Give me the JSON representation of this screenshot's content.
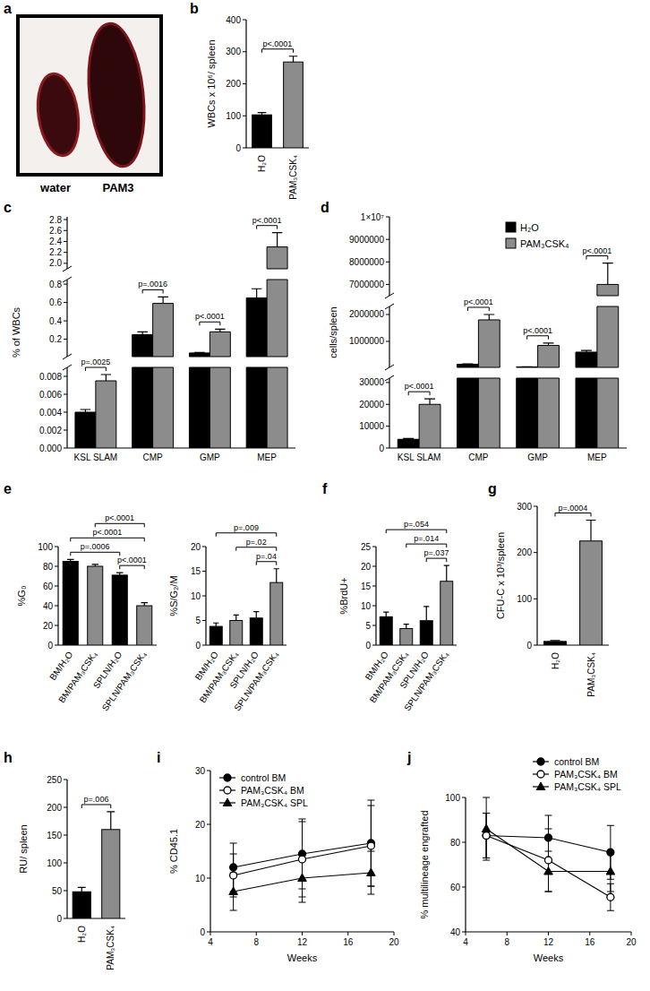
{
  "chart_data": [
    {
      "type": "image",
      "panel": "a",
      "labels": [
        "water",
        "PAM3"
      ]
    },
    {
      "type": "bar",
      "panel": "b",
      "y_label": "WBCs x 10⁶/ spleen",
      "categories": [
        "H₂O",
        "PAM₃CSK₄"
      ],
      "values": [
        103,
        268
      ],
      "errors": [
        7,
        18
      ],
      "colors": [
        "#000000",
        "#8c8c8c"
      ],
      "ylim": [
        0,
        400
      ],
      "yticks": [
        0,
        100,
        200,
        300,
        400
      ],
      "comparisons": [
        {
          "from": 0,
          "to": 1,
          "label": "p<.0001"
        }
      ]
    },
    {
      "type": "bar",
      "panel": "c",
      "y_label": "% of WBCs",
      "categories": [
        "KSL SLAM",
        "CMP",
        "GMP",
        "MEP"
      ],
      "series": [
        {
          "color": "#000000",
          "values": [
            0.004,
            0.25,
            0.05,
            0.65
          ],
          "errors": [
            0.0003,
            0.03,
            0.006,
            0.1
          ]
        },
        {
          "color": "#8c8c8c",
          "values": [
            0.0075,
            0.59,
            0.28,
            2.3
          ],
          "errors": [
            0.0007,
            0.07,
            0.03,
            0.26
          ]
        }
      ],
      "y_segments": [
        {
          "ylim": [
            0,
            0.009
          ],
          "yticks": [
            {
              "value": 0,
              "label": "0.000"
            },
            0.002,
            0.004,
            0.006,
            0.008
          ]
        },
        {
          "ylim": [
            0.01,
            0.85
          ],
          "yticks": [
            0.2,
            0.4,
            0.6,
            0.8
          ]
        },
        {
          "ylim": [
            1.9,
            2.85
          ],
          "yticks": [
            {
              "value": 2,
              "label": "2.0"
            },
            2.2,
            2.4,
            2.6,
            2.8
          ]
        }
      ],
      "comparisons": [
        {
          "category": 0,
          "label": "p=.0025"
        },
        {
          "category": 1,
          "label": "p=.0016"
        },
        {
          "category": 2,
          "label": "p<.0001"
        },
        {
          "category": 3,
          "label": "p<.0001"
        }
      ]
    },
    {
      "type": "bar",
      "panel": "d",
      "y_label": "cells/spleen",
      "categories": [
        "KSL SLAM",
        "CMP",
        "GMP",
        "MEP"
      ],
      "legend": "top-right",
      "series": [
        {
          "name": "H₂O",
          "color": "#000000",
          "values": [
            4000,
            150000,
            50000,
            600000
          ],
          "errors": [
            400,
            15000,
            5000,
            60000
          ]
        },
        {
          "name": "PAM₃CSK₄",
          "color": "#8c8c8c",
          "values": [
            20000,
            1800000,
            850000,
            7000000
          ],
          "errors": [
            2500,
            200000,
            90000,
            950000
          ]
        }
      ],
      "y_segments": [
        {
          "ylim": [
            0,
            32000
          ],
          "yticks": [
            0,
            10000,
            20000,
            30000
          ]
        },
        {
          "ylim": [
            32000,
            2300000
          ],
          "yticks": [
            1000000,
            2000000
          ]
        },
        {
          "ylim": [
            6500000,
            10000000
          ],
          "yticks": [
            7000000,
            8000000,
            9000000,
            {
              "value": 10000000,
              "label": "1×10⁷"
            }
          ]
        }
      ],
      "comparisons": [
        {
          "category": 0,
          "label": "p<.0001"
        },
        {
          "category": 1,
          "label": "p<.0001"
        },
        {
          "category": 2,
          "label": "p<.0001"
        },
        {
          "category": 3,
          "label": "p<.0001"
        }
      ]
    },
    {
      "type": "bar",
      "panel": "e",
      "y_label": "%G₀",
      "categories": [
        "BM/H₂O",
        "BM/PAM₃CSK₄",
        "SPLN/H₂O",
        "SPLN/PAM₃CSK₄"
      ],
      "values": [
        85,
        80,
        71,
        40
      ],
      "errors": [
        2,
        2,
        2.5,
        3
      ],
      "colors": [
        "#000000",
        "#8c8c8c",
        "#000000",
        "#8c8c8c"
      ],
      "ylim": [
        0,
        100
      ],
      "yticks": [
        0,
        20,
        40,
        60,
        80,
        100
      ],
      "comparisons": [
        {
          "from": 2,
          "to": 3,
          "label": "p<.0001"
        },
        {
          "from": 0,
          "to": 2,
          "label": "p=.0006"
        },
        {
          "from": 0,
          "to": 3,
          "label": "p<.0001"
        },
        {
          "from": 1,
          "to": 3,
          "label": "p<.0001"
        }
      ]
    },
    {
      "type": "bar",
      "y_label": "%S/G₂/M",
      "categories": [
        "BM/H₂O",
        "BM/PAM₃CSK₄",
        "SPLN/H₂O",
        "SPLN/PAM₃CSK₄"
      ],
      "values": [
        3.8,
        5,
        5.5,
        12.7
      ],
      "errors": [
        0.7,
        1.1,
        1.3,
        2.8
      ],
      "colors": [
        "#000000",
        "#8c8c8c",
        "#000000",
        "#8c8c8c"
      ],
      "ylim": [
        0,
        20
      ],
      "yticks": [
        0,
        5,
        10,
        15,
        20
      ],
      "comparisons": [
        {
          "from": 2,
          "to": 3,
          "label": "p=.04"
        },
        {
          "from": 1,
          "to": 3,
          "label": "p=.02"
        },
        {
          "from": 0,
          "to": 3,
          "label": "p=.009"
        }
      ]
    },
    {
      "type": "bar",
      "panel": "f",
      "y_label": "%BrdU+",
      "categories": [
        "BM/H₂O",
        "BM/PAM₃CSK₄",
        "SPLN/H₂O",
        "SPLN/PAM₃CSK₄"
      ],
      "values": [
        7.2,
        4.2,
        6.2,
        16.2
      ],
      "errors": [
        1.2,
        1.1,
        3.6,
        4
      ],
      "colors": [
        "#000000",
        "#8c8c8c",
        "#000000",
        "#8c8c8c"
      ],
      "ylim": [
        0,
        25
      ],
      "yticks": [
        0,
        5,
        10,
        15,
        20,
        25
      ],
      "comparisons": [
        {
          "from": 2,
          "to": 3,
          "label": "p=.037"
        },
        {
          "from": 1,
          "to": 3,
          "label": "p=.014"
        },
        {
          "from": 0,
          "to": 3,
          "label": "p=.054"
        }
      ]
    },
    {
      "type": "bar",
      "panel": "g",
      "y_label": "CFU-C x 10³/spleen",
      "categories": [
        "H₂O",
        "PAM₃CSK₄"
      ],
      "values": [
        8,
        225
      ],
      "errors": [
        2,
        45
      ],
      "colors": [
        "#000000",
        "#8c8c8c"
      ],
      "ylim": [
        0,
        300
      ],
      "yticks": [
        0,
        100,
        200,
        300
      ],
      "comparisons": [
        {
          "from": 0,
          "to": 1,
          "label": "p=.0004"
        }
      ]
    },
    {
      "type": "bar",
      "panel": "h",
      "y_label": "RU/ spleen",
      "categories": [
        "H₂O",
        "PAM₃CSK₄"
      ],
      "values": [
        48,
        160
      ],
      "errors": [
        8,
        32
      ],
      "colors": [
        "#000000",
        "#8c8c8c"
      ],
      "ylim": [
        0,
        250
      ],
      "yticks": [
        0,
        50,
        100,
        150,
        200,
        250
      ],
      "comparisons": [
        {
          "from": 0,
          "to": 1,
          "label": "p=.006"
        }
      ]
    },
    {
      "type": "line",
      "panel": "i",
      "x_label": "Weeks",
      "y_label": "% CD45.1",
      "x": [
        6,
        12,
        18
      ],
      "xlim": [
        4,
        20
      ],
      "xticks": [
        4,
        8,
        12,
        16,
        20
      ],
      "ylim": [
        0,
        30
      ],
      "yticks": [
        0,
        10,
        20,
        30
      ],
      "legend": "top-left",
      "series": [
        {
          "name": "control BM",
          "color": "#000000",
          "marker": "circle",
          "values": [
            12,
            14.5,
            16.5
          ],
          "errors": [
            4.5,
            6.5,
            8
          ]
        },
        {
          "name": "PAM₃CSK₄ BM",
          "color": "#000000",
          "marker": "circle-open",
          "values": [
            10.5,
            13.5,
            16
          ],
          "errors": [
            4,
            7,
            7.5
          ]
        },
        {
          "name": "PAM₃CSK₄ SPL",
          "color": "#000000",
          "marker": "triangle",
          "values": [
            7.5,
            10,
            11
          ],
          "errors": [
            3.5,
            4.5,
            4
          ]
        }
      ]
    },
    {
      "type": "line",
      "panel": "j",
      "x_label": "Weeks",
      "y_label": "% multilineage engrafted",
      "x": [
        6,
        12,
        18
      ],
      "xlim": [
        4,
        20
      ],
      "xticks": [
        4,
        8,
        12,
        16,
        20
      ],
      "ylim": [
        40,
        100
      ],
      "yticks": [
        40,
        60,
        80,
        100
      ],
      "legend": "top-right",
      "series": [
        {
          "name": "control BM",
          "color": "#000000",
          "marker": "circle",
          "values": [
            83,
            82,
            75.5
          ],
          "errors": [
            10,
            10,
            12
          ]
        },
        {
          "name": "PAM₃CSK₄ BM",
          "color": "#000000",
          "marker": "circle-open",
          "values": [
            83,
            72,
            55.5
          ],
          "errors": [
            10,
            14,
            6
          ]
        },
        {
          "name": "PAM₃CSK₄ SPL",
          "color": "#000000",
          "marker": "triangle",
          "values": [
            86,
            67,
            67
          ],
          "errors": [
            14,
            9,
            9
          ]
        }
      ]
    }
  ]
}
